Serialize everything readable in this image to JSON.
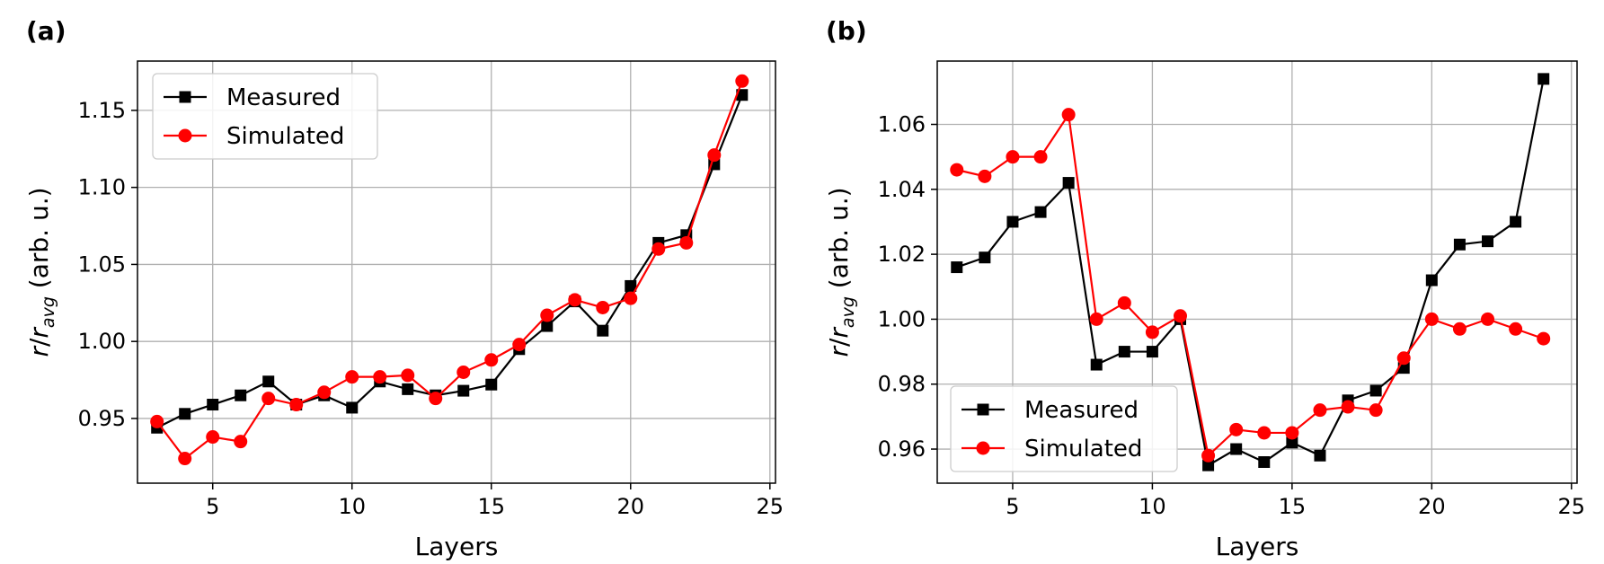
{
  "chart_data": [
    {
      "type": "line",
      "panel_label": "(a)",
      "xlabel": "Layers",
      "ylabel_parts": {
        "r": "r",
        "slash": "/",
        "r2": "r",
        "sub": "avg",
        "units": " (arb. u.)"
      },
      "xlim": [
        2.3,
        25.2
      ],
      "ylim": [
        0.908,
        1.182
      ],
      "xticks": [
        5,
        10,
        15,
        20,
        25
      ],
      "xtick_labels": [
        "5",
        "10",
        "15",
        "20",
        "25"
      ],
      "yticks": [
        0.95,
        1.0,
        1.05,
        1.1,
        1.15
      ],
      "ytick_labels": [
        "0.95",
        "1.00",
        "1.05",
        "1.10",
        "1.15"
      ],
      "grid": true,
      "legend_position": "upper-left",
      "x": [
        3,
        4,
        5,
        6,
        7,
        8,
        9,
        10,
        11,
        12,
        13,
        14,
        15,
        16,
        17,
        18,
        19,
        20,
        21,
        22,
        23,
        24
      ],
      "series": [
        {
          "name": "Measured",
          "color": "#000000",
          "marker": "square",
          "values": [
            0.944,
            0.953,
            0.959,
            0.965,
            0.974,
            0.959,
            0.965,
            0.957,
            0.974,
            0.969,
            0.965,
            0.968,
            0.972,
            0.995,
            1.01,
            1.026,
            1.007,
            1.036,
            1.064,
            1.069,
            1.115,
            1.16
          ]
        },
        {
          "name": "Simulated",
          "color": "#ff0000",
          "marker": "circle",
          "values": [
            0.948,
            0.924,
            0.938,
            0.935,
            0.963,
            0.959,
            0.967,
            0.977,
            0.977,
            0.978,
            0.963,
            0.98,
            0.988,
            0.998,
            1.017,
            1.027,
            1.022,
            1.028,
            1.06,
            1.064,
            1.121,
            1.169
          ]
        }
      ]
    },
    {
      "type": "line",
      "panel_label": "(b)",
      "xlabel": "Layers",
      "ylabel_parts": {
        "r": "r",
        "slash": "/",
        "r2": "r",
        "sub": "avg",
        "units": " (arb. u.)"
      },
      "xlim": [
        2.3,
        25.2
      ],
      "ylim": [
        0.9495,
        1.0795
      ],
      "xticks": [
        5,
        10,
        15,
        20,
        25
      ],
      "xtick_labels": [
        "5",
        "10",
        "15",
        "20",
        "25"
      ],
      "yticks": [
        0.96,
        0.98,
        1.0,
        1.02,
        1.04,
        1.06
      ],
      "ytick_labels": [
        "0.96",
        "0.98",
        "1.00",
        "1.02",
        "1.04",
        "1.06"
      ],
      "grid": true,
      "legend_position": "lower-left",
      "x": [
        3,
        4,
        5,
        6,
        7,
        8,
        9,
        10,
        11,
        12,
        13,
        14,
        15,
        16,
        17,
        18,
        19,
        20,
        21,
        22,
        23,
        24
      ],
      "series": [
        {
          "name": "Measured",
          "color": "#000000",
          "marker": "square",
          "values": [
            1.016,
            1.019,
            1.03,
            1.033,
            1.042,
            0.986,
            0.99,
            0.99,
            1.0,
            0.955,
            0.96,
            0.956,
            0.962,
            0.958,
            0.975,
            0.978,
            0.985,
            1.012,
            1.023,
            1.024,
            1.03,
            1.074
          ]
        },
        {
          "name": "Simulated",
          "color": "#ff0000",
          "marker": "circle",
          "values": [
            1.046,
            1.044,
            1.05,
            1.05,
            1.063,
            1.0,
            1.005,
            0.996,
            1.001,
            0.958,
            0.966,
            0.965,
            0.965,
            0.972,
            0.973,
            0.972,
            0.988,
            1.0,
            0.997,
            1.0,
            0.997,
            0.994
          ]
        }
      ]
    }
  ]
}
